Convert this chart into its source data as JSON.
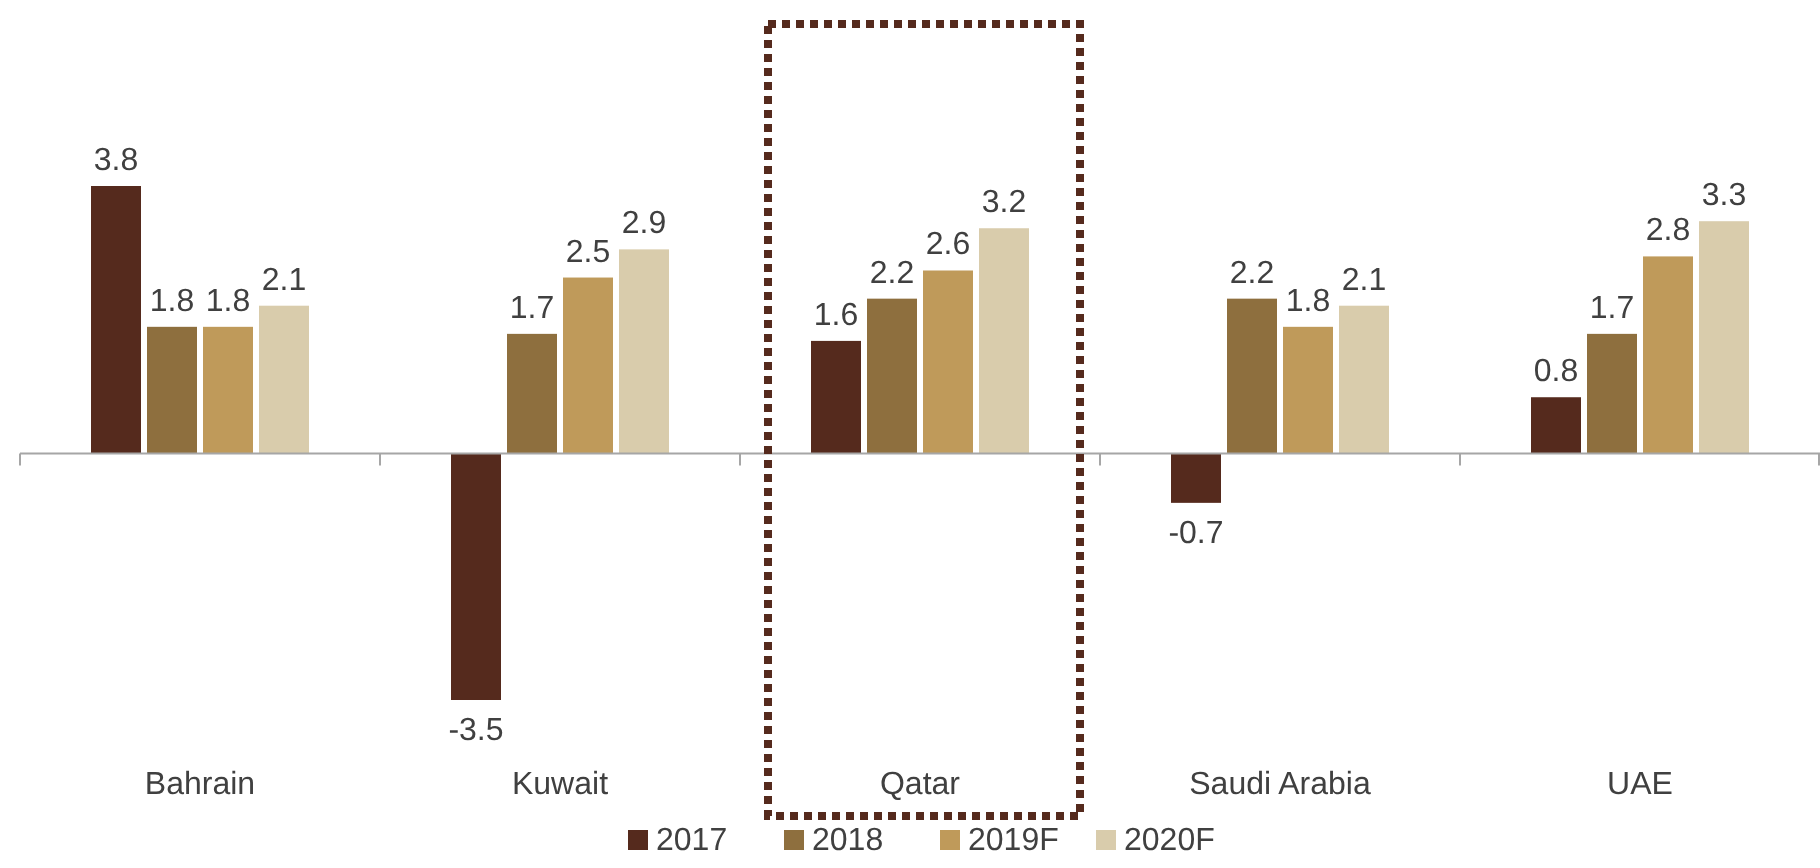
{
  "chart_data": {
    "type": "bar",
    "categories": [
      "Bahrain",
      "Kuwait",
      "Qatar",
      "Saudi Arabia",
      "UAE"
    ],
    "series": [
      {
        "name": "2017",
        "color": "#552a1d",
        "values": [
          3.8,
          -3.5,
          1.6,
          -0.7,
          0.8
        ]
      },
      {
        "name": "2018",
        "color": "#8e6f3e",
        "values": [
          1.8,
          1.7,
          2.2,
          2.2,
          1.7
        ]
      },
      {
        "name": "2019F",
        "color": "#bf9a5a",
        "values": [
          1.8,
          2.5,
          2.6,
          1.8,
          2.8
        ]
      },
      {
        "name": "2020F",
        "color": "#d9ccac",
        "values": [
          2.1,
          2.9,
          3.2,
          2.1,
          3.3
        ]
      }
    ],
    "data_labels": true,
    "legend": "bottom"
  }
}
